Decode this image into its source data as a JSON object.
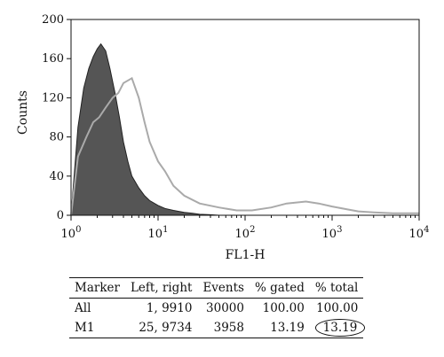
{
  "chart_data": {
    "type": "area",
    "xlabel": "FL1-H",
    "ylabel": "Counts",
    "xscale": "log",
    "xlim": [
      1,
      10000
    ],
    "ylim": [
      0,
      200
    ],
    "xticks": [
      {
        "value": 1,
        "base": "10",
        "exp": "0"
      },
      {
        "value": 10,
        "base": "10",
        "exp": "1"
      },
      {
        "value": 100,
        "base": "10",
        "exp": "2"
      },
      {
        "value": 1000,
        "base": "10",
        "exp": "3"
      },
      {
        "value": 10000,
        "base": "10",
        "exp": "4"
      }
    ],
    "yticks": [
      "0",
      "40",
      "80",
      "120",
      "160",
      "200"
    ],
    "series": [
      {
        "style": "filled",
        "color": "#555555",
        "x": [
          1,
          1.2,
          1.4,
          1.6,
          1.8,
          2,
          2.2,
          2.5,
          2.8,
          3.2,
          3.6,
          4,
          4.5,
          5,
          6,
          7,
          8,
          10,
          12,
          15,
          20,
          25,
          30,
          40,
          50
        ],
        "y": [
          0,
          90,
          130,
          150,
          162,
          170,
          175,
          168,
          150,
          125,
          100,
          75,
          55,
          40,
          28,
          20,
          15,
          10,
          7,
          5,
          3,
          2,
          1,
          0.5,
          0
        ]
      },
      {
        "style": "outline",
        "color": "#aaaaaa",
        "x": [
          1,
          1.2,
          1.5,
          1.8,
          2.1,
          2.5,
          3,
          3.5,
          4,
          5,
          6,
          7,
          8,
          10,
          12,
          15,
          20,
          30,
          50,
          80,
          120,
          200,
          300,
          500,
          700,
          1000,
          1500,
          2000,
          3000,
          5000,
          10000
        ],
        "y": [
          0,
          60,
          80,
          95,
          100,
          110,
          120,
          125,
          135,
          140,
          120,
          95,
          75,
          55,
          45,
          30,
          20,
          12,
          8,
          5,
          5,
          8,
          12,
          14,
          12,
          9,
          6,
          4,
          3,
          2,
          2
        ]
      }
    ]
  },
  "table": {
    "headers": [
      "Marker",
      "Left, right",
      "Events",
      "% gated",
      "% total"
    ],
    "rows": [
      [
        "All",
        "1, 9910",
        "30000",
        "100.00",
        "100.00"
      ],
      [
        "M1",
        "25, 9734",
        "3958",
        "13.19",
        "13.19"
      ]
    ],
    "circled_cell": "13.19"
  }
}
